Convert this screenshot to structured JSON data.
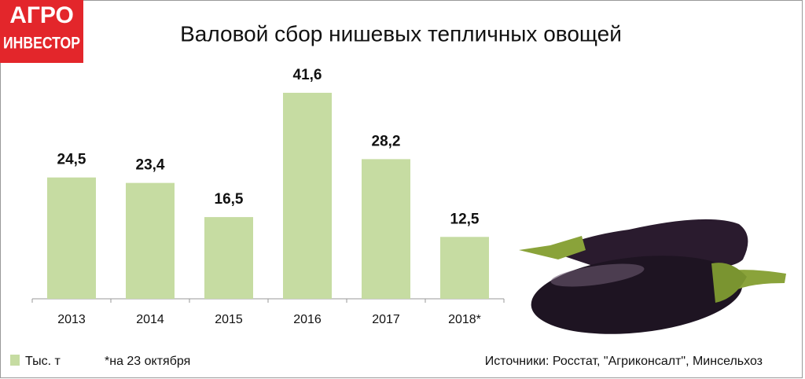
{
  "logo": {
    "line1": "АГРО",
    "line2": "ИНВЕСТОР"
  },
  "chart_data": {
    "type": "bar",
    "title": "Валовой сбор нишевых тепличных овощей",
    "categories": [
      "2013",
      "2014",
      "2015",
      "2016",
      "2017",
      "2018*"
    ],
    "series": [
      {
        "name": "Тыс. т",
        "color": "#c6dca2",
        "values": [
          24.5,
          23.4,
          16.5,
          41.6,
          28.2,
          12.5
        ],
        "value_labels": [
          "24,5",
          "23,4",
          "16,5",
          "41,6",
          "28,2",
          "12,5"
        ]
      }
    ],
    "note": "*на 23 октября",
    "source": "Источники: Росстат, \"Агриконсалт\", Минсельхоз"
  }
}
